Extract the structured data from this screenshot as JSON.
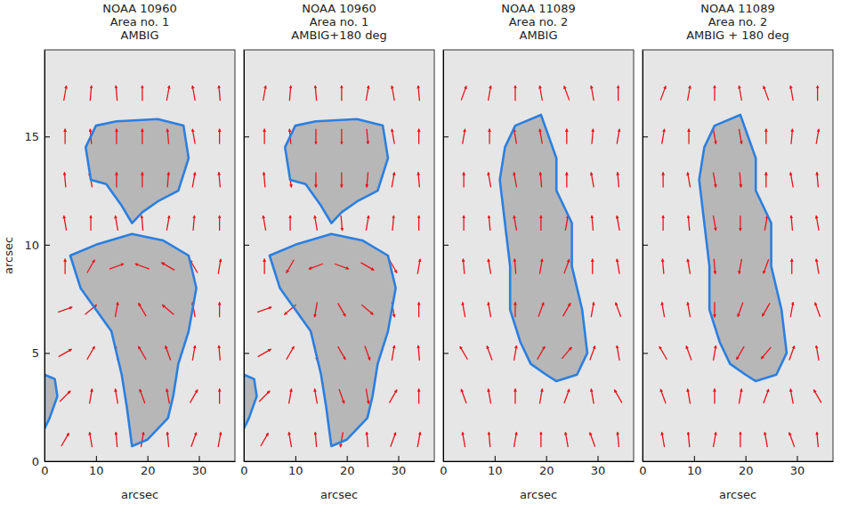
{
  "chart_data": [
    {
      "type": "vector_field",
      "title": [
        "NOAA 10960",
        "Area no. 1",
        "AMBIG"
      ],
      "xlabel": "arcsec",
      "ylabel": "arcsec",
      "xlim": [
        0,
        37
      ],
      "ylim": [
        0,
        19
      ],
      "xticks": [
        0,
        10,
        20,
        30
      ],
      "yticks": [
        0,
        5,
        10,
        15
      ],
      "tick_labels": true,
      "color": "#e8141b",
      "contours": [
        [
          [
            8,
            14.5
          ],
          [
            10,
            15.5
          ],
          [
            14,
            15.7
          ],
          [
            22,
            15.8
          ],
          [
            27,
            15.5
          ],
          [
            28,
            14
          ],
          [
            26,
            12.5
          ],
          [
            22,
            12
          ],
          [
            19,
            11.5
          ],
          [
            17,
            11
          ],
          [
            15,
            11.8
          ],
          [
            12,
            12.8
          ],
          [
            9,
            13
          ]
        ],
        [
          [
            5,
            9.5
          ],
          [
            10,
            10
          ],
          [
            17,
            10.5
          ],
          [
            23,
            10.2
          ],
          [
            28,
            9.5
          ],
          [
            29.5,
            8
          ],
          [
            28,
            6
          ],
          [
            26,
            4.5
          ],
          [
            25,
            3
          ],
          [
            24,
            2
          ],
          [
            22,
            1.5
          ],
          [
            20,
            1
          ],
          [
            17,
            0.7
          ],
          [
            16,
            2.5
          ],
          [
            15,
            4
          ],
          [
            13,
            6
          ],
          [
            10,
            7
          ],
          [
            7,
            8
          ]
        ],
        [
          [
            0,
            4
          ],
          [
            2,
            3.8
          ],
          [
            2.5,
            3
          ],
          [
            1,
            2
          ],
          [
            0,
            1.5
          ]
        ]
      ],
      "vectors": {
        "x": [
          4,
          9,
          14,
          19,
          24,
          29,
          34
        ],
        "y": [
          1,
          3,
          5,
          7,
          9,
          11,
          13,
          15,
          17
        ],
        "angle": [
          [
            60,
            100,
            95,
            80,
            95,
            70,
            80
          ],
          [
            45,
            80,
            100,
            110,
            100,
            60,
            90
          ],
          [
            30,
            60,
            100,
            120,
            110,
            80,
            95
          ],
          [
            20,
            40,
            80,
            120,
            140,
            100,
            90
          ],
          [
            90,
            60,
            20,
            160,
            150,
            120,
            80
          ],
          [
            100,
            90,
            100,
            95,
            80,
            85,
            90
          ],
          [
            95,
            100,
            90,
            90,
            85,
            80,
            95
          ],
          [
            90,
            95,
            90,
            90,
            95,
            100,
            90
          ],
          [
            80,
            85,
            95,
            90,
            80,
            100,
            95
          ]
        ]
      }
    },
    {
      "type": "vector_field",
      "title": [
        "NOAA 10960",
        "Area no. 1",
        "AMBIG+180 deg"
      ],
      "xlabel": "arcsec",
      "xlim": [
        0,
        37
      ],
      "ylim": [
        0,
        19
      ],
      "xticks": [
        0,
        10,
        20,
        30
      ],
      "yticks": [
        0,
        5,
        10,
        15
      ],
      "tick_labels": "x",
      "color": "#e8141b",
      "contours": [
        [
          [
            8,
            14.5
          ],
          [
            10,
            15.5
          ],
          [
            14,
            15.7
          ],
          [
            22,
            15.8
          ],
          [
            27,
            15.5
          ],
          [
            28,
            14
          ],
          [
            26,
            12.5
          ],
          [
            22,
            12
          ],
          [
            19,
            11.5
          ],
          [
            17,
            11
          ],
          [
            15,
            11.8
          ],
          [
            12,
            12.8
          ],
          [
            9,
            13
          ]
        ],
        [
          [
            5,
            9.5
          ],
          [
            10,
            10
          ],
          [
            17,
            10.5
          ],
          [
            23,
            10.2
          ],
          [
            28,
            9.5
          ],
          [
            29.5,
            8
          ],
          [
            28,
            6
          ],
          [
            26,
            4.5
          ],
          [
            25,
            3
          ],
          [
            24,
            2
          ],
          [
            22,
            1.5
          ],
          [
            20,
            1
          ],
          [
            17,
            0.7
          ],
          [
            16,
            2.5
          ],
          [
            15,
            4
          ],
          [
            13,
            6
          ],
          [
            10,
            7
          ],
          [
            7,
            8
          ]
        ],
        [
          [
            0,
            4
          ],
          [
            2,
            3.8
          ],
          [
            2.5,
            3
          ],
          [
            1,
            2
          ],
          [
            0,
            1.5
          ]
        ]
      ],
      "vectors": {
        "x": [
          4,
          9,
          14,
          19,
          24,
          29,
          34
        ],
        "y": [
          1,
          3,
          5,
          7,
          9,
          11,
          13,
          15,
          17
        ],
        "angle": [
          [
            60,
            100,
            95,
            260,
            95,
            70,
            80
          ],
          [
            45,
            80,
            100,
            290,
            280,
            60,
            90
          ],
          [
            30,
            60,
            280,
            300,
            290,
            80,
            95
          ],
          [
            20,
            220,
            260,
            300,
            320,
            280,
            90
          ],
          [
            90,
            240,
            200,
            340,
            330,
            300,
            80
          ],
          [
            100,
            90,
            100,
            275,
            80,
            85,
            90
          ],
          [
            95,
            280,
            270,
            270,
            265,
            80,
            95
          ],
          [
            90,
            95,
            270,
            270,
            275,
            100,
            90
          ],
          [
            80,
            85,
            95,
            90,
            80,
            100,
            95
          ]
        ]
      }
    },
    {
      "type": "vector_field",
      "title": [
        "NOAA 11089",
        "Area no. 2",
        "AMBIG"
      ],
      "xlabel": "arcsec",
      "xlim": [
        0,
        37
      ],
      "ylim": [
        0,
        19
      ],
      "xticks": [
        0,
        10,
        20,
        30
      ],
      "yticks": [
        0,
        5,
        10,
        15
      ],
      "tick_labels": "x",
      "color": "#e8141b",
      "contours": [
        [
          [
            14,
            15.5
          ],
          [
            19,
            16
          ],
          [
            22,
            14
          ],
          [
            22,
            12.5
          ],
          [
            25,
            11
          ],
          [
            25,
            9
          ],
          [
            27,
            7
          ],
          [
            28,
            5
          ],
          [
            26,
            4
          ],
          [
            22,
            3.7
          ],
          [
            20,
            4
          ],
          [
            17,
            4.5
          ],
          [
            15,
            5.5
          ],
          [
            13,
            7
          ],
          [
            13,
            9
          ],
          [
            12,
            11
          ],
          [
            11,
            13
          ],
          [
            12,
            14.5
          ]
        ]
      ],
      "vectors": {
        "x": [
          4,
          9,
          14,
          19,
          24,
          29,
          34
        ],
        "y": [
          1,
          3,
          5,
          7,
          9,
          11,
          13,
          15,
          17
        ],
        "angle": [
          [
            100,
            95,
            80,
            90,
            100,
            110,
            95
          ],
          [
            110,
            100,
            90,
            80,
            70,
            100,
            120
          ],
          [
            120,
            110,
            80,
            60,
            50,
            70,
            100
          ],
          [
            100,
            100,
            90,
            70,
            60,
            80,
            110
          ],
          [
            95,
            100,
            95,
            80,
            70,
            90,
            100
          ],
          [
            90,
            95,
            100,
            90,
            80,
            95,
            100
          ],
          [
            90,
            100,
            100,
            95,
            90,
            100,
            95
          ],
          [
            80,
            90,
            100,
            100,
            90,
            85,
            80
          ],
          [
            70,
            80,
            90,
            100,
            110,
            100,
            90
          ]
        ]
      }
    },
    {
      "type": "vector_field",
      "title": [
        "NOAA 11089",
        "Area no. 2",
        "AMBIG + 180 deg"
      ],
      "xlabel": "arcsec",
      "xlim": [
        0,
        37
      ],
      "ylim": [
        0,
        19
      ],
      "xticks": [
        0,
        10,
        20,
        30
      ],
      "yticks": [
        0,
        5,
        10,
        15
      ],
      "tick_labels": "x",
      "color": "#e8141b",
      "contours": [
        [
          [
            14,
            15.5
          ],
          [
            19,
            16
          ],
          [
            22,
            14
          ],
          [
            22,
            12.5
          ],
          [
            25,
            11
          ],
          [
            25,
            9
          ],
          [
            27,
            7
          ],
          [
            28,
            5
          ],
          [
            26,
            4
          ],
          [
            22,
            3.7
          ],
          [
            20,
            4
          ],
          [
            17,
            4.5
          ],
          [
            15,
            5.5
          ],
          [
            13,
            7
          ],
          [
            13,
            9
          ],
          [
            12,
            11
          ],
          [
            11,
            13
          ],
          [
            12,
            14.5
          ]
        ]
      ],
      "vectors": {
        "x": [
          4,
          9,
          14,
          19,
          24,
          29,
          34
        ],
        "y": [
          1,
          3,
          5,
          7,
          9,
          11,
          13,
          15,
          17
        ],
        "angle": [
          [
            100,
            95,
            80,
            90,
            100,
            110,
            95
          ],
          [
            110,
            100,
            90,
            80,
            70,
            100,
            120
          ],
          [
            120,
            110,
            80,
            240,
            230,
            70,
            100
          ],
          [
            100,
            100,
            270,
            250,
            240,
            80,
            110
          ],
          [
            95,
            100,
            275,
            260,
            250,
            90,
            100
          ],
          [
            90,
            95,
            280,
            270,
            80,
            95,
            100
          ],
          [
            90,
            100,
            280,
            275,
            90,
            100,
            95
          ],
          [
            80,
            90,
            280,
            280,
            90,
            85,
            80
          ],
          [
            70,
            80,
            90,
            100,
            110,
            100,
            90
          ]
        ]
      }
    }
  ]
}
